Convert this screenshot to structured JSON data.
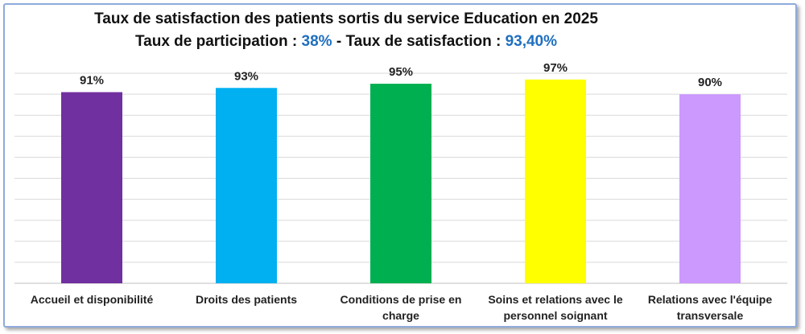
{
  "chart_data": {
    "type": "bar",
    "title_line1": "Taux de satisfaction des patients sortis du service Education en 2025",
    "title_line2": {
      "participation_label": "Taux de participation : ",
      "participation_value": "38%",
      "separator": " - ",
      "satisfaction_label": "Taux de satisfaction : ",
      "satisfaction_value": "93,40%"
    },
    "categories": [
      "Accueil et disponibilité",
      "Droits des patients",
      "Conditions de prise en charge",
      "Soins et relations avec le personnel soignant",
      "Relations avec l'équipe transversale"
    ],
    "values": [
      91,
      93,
      95,
      97,
      90
    ],
    "data_labels": [
      "91%",
      "93%",
      "95%",
      "97%",
      "90%"
    ],
    "colors": [
      "#7030a0",
      "#00b0f0",
      "#00b050",
      "#ffff00",
      "#cc99ff"
    ],
    "ylim": [
      0,
      100
    ],
    "grid": true,
    "legend": "none"
  }
}
